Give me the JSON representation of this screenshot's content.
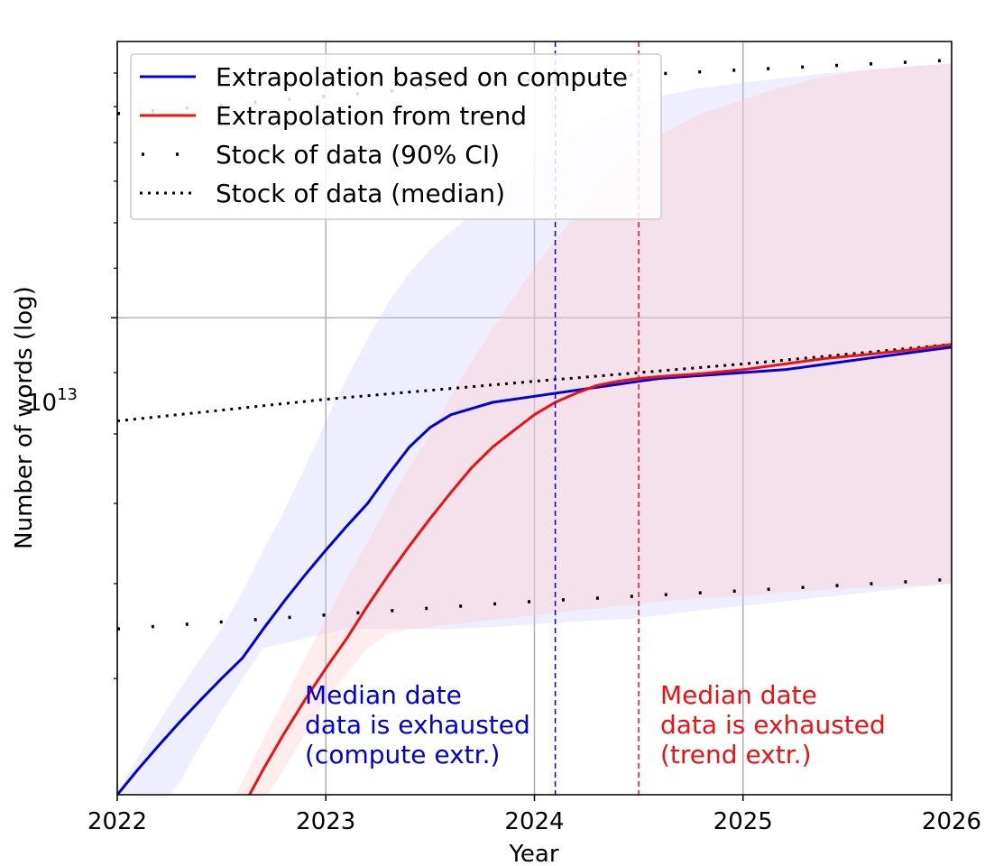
{
  "chart_data": {
    "type": "line",
    "title": "",
    "xlabel": "Year",
    "ylabel": "Number of words (log)",
    "xlim": [
      2022,
      2026
    ],
    "ylim": [
      4000000000000.0,
      17000000000000.0
    ],
    "yscale": "log",
    "grid": true,
    "x_ticks": [
      2022,
      2023,
      2024,
      2025,
      2026
    ],
    "x_tick_labels": [
      "2022",
      "2023",
      "2024",
      "2025",
      "2026"
    ],
    "y_major_tick": {
      "value": 10000000000000.0,
      "base": "10",
      "exponent": "13"
    },
    "y_minor_ticks": [
      5000000000000.0,
      6000000000000.0,
      7000000000000.0,
      8000000000000.0,
      9000000000000.0,
      11000000000000.0,
      12000000000000.0,
      13000000000000.0,
      14000000000000.0,
      15000000000000.0,
      16000000000000.0
    ],
    "legend_position": "top-left",
    "legend": [
      {
        "label": "Extrapolation based on compute",
        "style": "solid",
        "color": "#0000dd"
      },
      {
        "label": "Extrapolation from trend",
        "style": "solid",
        "color": "#ee1111"
      },
      {
        "label": "Stock of data (90% CI)",
        "style": "sparse-dots",
        "color": "#000000"
      },
      {
        "label": "Stock of data (median)",
        "style": "dotted",
        "color": "#000000"
      }
    ],
    "series": [
      {
        "name": "Extrapolation based on compute",
        "color": "#0000dd",
        "x": [
          2022.0,
          2022.1,
          2022.2,
          2022.3,
          2022.4,
          2022.5,
          2022.6,
          2022.7,
          2022.8,
          2022.9,
          2023.0,
          2023.1,
          2023.2,
          2023.3,
          2023.4,
          2023.5,
          2023.6,
          2023.8,
          2024.0,
          2024.2,
          2024.4,
          2024.5,
          2024.6,
          2024.8,
          2025.0,
          2025.2,
          2025.4,
          2025.6,
          2025.8,
          2026.0
        ],
        "values": [
          4000000000000.0,
          4200000000000.0,
          4400000000000.0,
          4600000000000.0,
          4800000000000.0,
          5000000000000.0,
          5200000000000.0,
          5500000000000.0,
          5800000000000.0,
          6100000000000.0,
          6400000000000.0,
          6700000000000.0,
          7000000000000.0,
          7400000000000.0,
          7800000000000.0,
          8100000000000.0,
          8300000000000.0,
          8500000000000.0,
          8600000000000.0,
          8700000000000.0,
          8800000000000.0,
          8850000000000.0,
          8900000000000.0,
          8950000000000.0,
          9000000000000.0,
          9050000000000.0,
          9150000000000.0,
          9250000000000.0,
          9350000000000.0,
          9450000000000.0
        ],
        "ci_lower": [
          3500000000000.0,
          3700000000000.0,
          3900000000000.0,
          4100000000000.0,
          4400000000000.0,
          4700000000000.0,
          5000000000000.0,
          5300000000000.0,
          5350000000000.0,
          5400000000000.0,
          5450000000000.0,
          5500000000000.0,
          5500000000000.0,
          5500000000000.0,
          5500000000000.0,
          5500000000000.0,
          5500000000000.0,
          5520000000000.0,
          5550000000000.0,
          5580000000000.0,
          5600000000000.0,
          5620000000000.0,
          5650000000000.0,
          5700000000000.0,
          5750000000000.0,
          5800000000000.0,
          5850000000000.0,
          5900000000000.0,
          5950000000000.0,
          6000000000000.0
        ],
        "ci_upper": [
          4000000000000.0,
          4300000000000.0,
          4600000000000.0,
          4900000000000.0,
          5200000000000.0,
          5500000000000.0,
          5900000000000.0,
          6400000000000.0,
          6900000000000.0,
          7500000000000.0,
          8200000000000.0,
          8900000000000.0,
          9600000000000.0,
          10300000000000.0,
          10900000000000.0,
          11400000000000.0,
          11800000000000.0,
          12600000000000.0,
          13500000000000.0,
          14300000000000.0,
          14900000000000.0,
          15100000000000.0,
          15300000000000.0,
          15550000000000.0,
          15700000000000.0,
          15850000000000.0,
          16000000000000.0,
          16100000000000.0,
          16200000000000.0,
          16300000000000.0
        ]
      },
      {
        "name": "Extrapolation from trend",
        "color": "#ee1111",
        "x": [
          2022.5,
          2022.6,
          2022.7,
          2022.8,
          2022.9,
          2023.0,
          2023.1,
          2023.2,
          2023.3,
          2023.4,
          2023.5,
          2023.6,
          2023.7,
          2023.8,
          2023.9,
          2024.0,
          2024.1,
          2024.2,
          2024.3,
          2024.4,
          2024.5,
          2024.6,
          2024.8,
          2025.0,
          2025.2,
          2025.4,
          2025.6,
          2025.8,
          2026.0
        ],
        "values": [
          3700000000000.0,
          3900000000000.0,
          4200000000000.0,
          4500000000000.0,
          4800000000000.0,
          5100000000000.0,
          5400000000000.0,
          5750000000000.0,
          6100000000000.0,
          6450000000000.0,
          6800000000000.0,
          7150000000000.0,
          7500000000000.0,
          7800000000000.0,
          8050000000000.0,
          8300000000000.0,
          8500000000000.0,
          8650000000000.0,
          8780000000000.0,
          8850000000000.0,
          8900000000000.0,
          8930000000000.0,
          8980000000000.0,
          9050000000000.0,
          9150000000000.0,
          9250000000000.0,
          9320000000000.0,
          9400000000000.0,
          9500000000000.0
        ],
        "ci_lower": [
          3500000000000.0,
          3700000000000.0,
          3950000000000.0,
          4200000000000.0,
          4500000000000.0,
          4800000000000.0,
          5050000000000.0,
          5300000000000.0,
          5450000000000.0,
          5500000000000.0,
          5520000000000.0,
          5550000000000.0,
          5570000000000.0,
          5600000000000.0,
          5620000000000.0,
          5650000000000.0,
          5670000000000.0,
          5700000000000.0,
          5720000000000.0,
          5750000000000.0,
          5770000000000.0,
          5800000000000.0,
          5830000000000.0,
          5860000000000.0,
          5900000000000.0,
          5930000000000.0,
          5960000000000.0,
          5980000000000.0,
          6000000000000.0
        ],
        "ci_upper": [
          3800000000000.0,
          4100000000000.0,
          4450000000000.0,
          4800000000000.0,
          5200000000000.0,
          5600000000000.0,
          6050000000000.0,
          6500000000000.0,
          7000000000000.0,
          7500000000000.0,
          8000000000000.0,
          8600000000000.0,
          9200000000000.0,
          9800000000000.0,
          10400000000000.0,
          11000000000000.0,
          11600000000000.0,
          12200000000000.0,
          12800000000000.0,
          13300000000000.0,
          13800000000000.0,
          14200000000000.0,
          14800000000000.0,
          15200000000000.0,
          15600000000000.0,
          15900000000000.0,
          16100000000000.0,
          16200000000000.0,
          16300000000000.0
        ]
      },
      {
        "name": "Stock of data (median)",
        "color": "#000000",
        "style": "dotted",
        "x": [
          2022.0,
          2023.0,
          2024.0,
          2025.0,
          2026.0
        ],
        "values": [
          8200000000000.0,
          8550000000000.0,
          8850000000000.0,
          9150000000000.0,
          9500000000000.0
        ]
      },
      {
        "name": "Stock of data (90% CI) lower",
        "color": "#000000",
        "style": "sparse-dots",
        "x": [
          2022.0,
          2023.0,
          2024.0,
          2025.0,
          2026.0
        ],
        "values": [
          5500000000000.0,
          5650000000000.0,
          5800000000000.0,
          5920000000000.0,
          6050000000000.0
        ]
      },
      {
        "name": "Stock of data (90% CI) upper",
        "color": "#000000",
        "style": "sparse-dots",
        "x": [
          2022.0,
          2023.0,
          2024.0,
          2025.0,
          2026.0
        ],
        "values": [
          14800000000000.0,
          15300000000000.0,
          15800000000000.0,
          16100000000000.0,
          16400000000000.0
        ]
      }
    ],
    "vertical_lines": [
      {
        "x": 2024.1,
        "color": "#0000dd",
        "style": "dashed",
        "label": "Median date data is exhausted (compute extr.)"
      },
      {
        "x": 2024.5,
        "color": "#ee1111",
        "style": "dashed",
        "label": "Median date data is exhausted (trend extr.)"
      }
    ],
    "annotations": [
      {
        "color": "#0000dd",
        "lines": [
          "Median date",
          "data is exhausted",
          "(compute extr.)"
        ]
      },
      {
        "color": "#ee1111",
        "lines": [
          "Median date",
          "data is exhausted",
          "(trend extr.)"
        ]
      }
    ]
  }
}
